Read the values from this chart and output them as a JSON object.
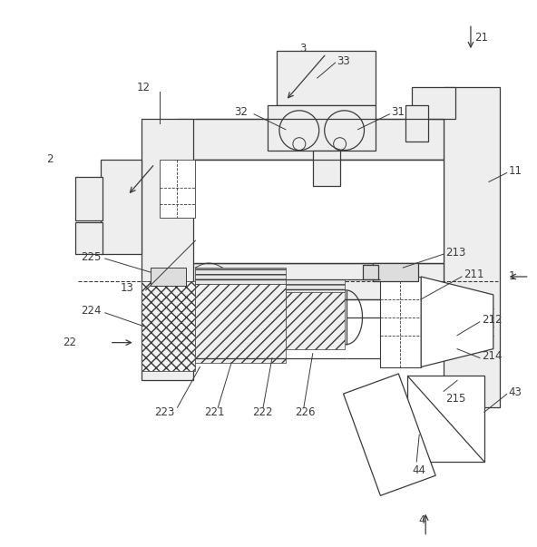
{
  "bg_color": "#ffffff",
  "line_color": "#3a3a3a",
  "label_color": "#3a3a3a",
  "lw": 0.9
}
